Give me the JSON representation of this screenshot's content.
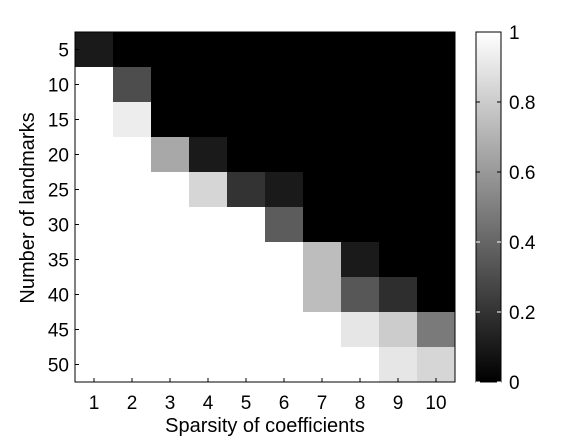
{
  "chart_data": {
    "type": "heatmap",
    "title": "",
    "xlabel": "Sparsity of coefficients",
    "ylabel": "Number of landmarks",
    "x_categories": [
      "1",
      "2",
      "3",
      "4",
      "5",
      "6",
      "7",
      "8",
      "9",
      "10"
    ],
    "y_categories": [
      "5",
      "10",
      "15",
      "20",
      "25",
      "30",
      "35",
      "40",
      "45",
      "50"
    ],
    "values": [
      [
        0.1,
        0.0,
        0.0,
        0.0,
        0.0,
        0.0,
        0.0,
        0.0,
        0.0,
        0.0
      ],
      [
        1.0,
        0.3,
        0.0,
        0.0,
        0.0,
        0.0,
        0.0,
        0.0,
        0.0,
        0.0
      ],
      [
        1.0,
        0.93,
        0.0,
        0.0,
        0.0,
        0.0,
        0.0,
        0.0,
        0.0,
        0.0
      ],
      [
        1.0,
        1.0,
        0.66,
        0.1,
        0.0,
        0.0,
        0.0,
        0.0,
        0.0,
        0.0
      ],
      [
        1.0,
        1.0,
        1.0,
        0.84,
        0.2,
        0.1,
        0.0,
        0.0,
        0.0,
        0.0
      ],
      [
        1.0,
        1.0,
        1.0,
        1.0,
        1.0,
        0.36,
        0.0,
        0.0,
        0.0,
        0.0
      ],
      [
        1.0,
        1.0,
        1.0,
        1.0,
        1.0,
        1.0,
        0.74,
        0.1,
        0.0,
        0.0
      ],
      [
        1.0,
        1.0,
        1.0,
        1.0,
        1.0,
        1.0,
        0.74,
        0.34,
        0.18,
        0.0
      ],
      [
        1.0,
        1.0,
        1.0,
        1.0,
        1.0,
        1.0,
        1.0,
        0.9,
        0.8,
        0.48
      ],
      [
        1.0,
        1.0,
        1.0,
        1.0,
        1.0,
        1.0,
        1.0,
        1.0,
        0.9,
        0.84
      ]
    ],
    "colorscale": "gray",
    "clim": [
      0,
      1
    ],
    "colorbar_ticks": [
      "0",
      "0.2",
      "0.4",
      "0.6",
      "0.8",
      "1"
    ],
    "colorbar_tick_values": [
      0,
      0.2,
      0.4,
      0.6,
      0.8,
      1
    ]
  }
}
